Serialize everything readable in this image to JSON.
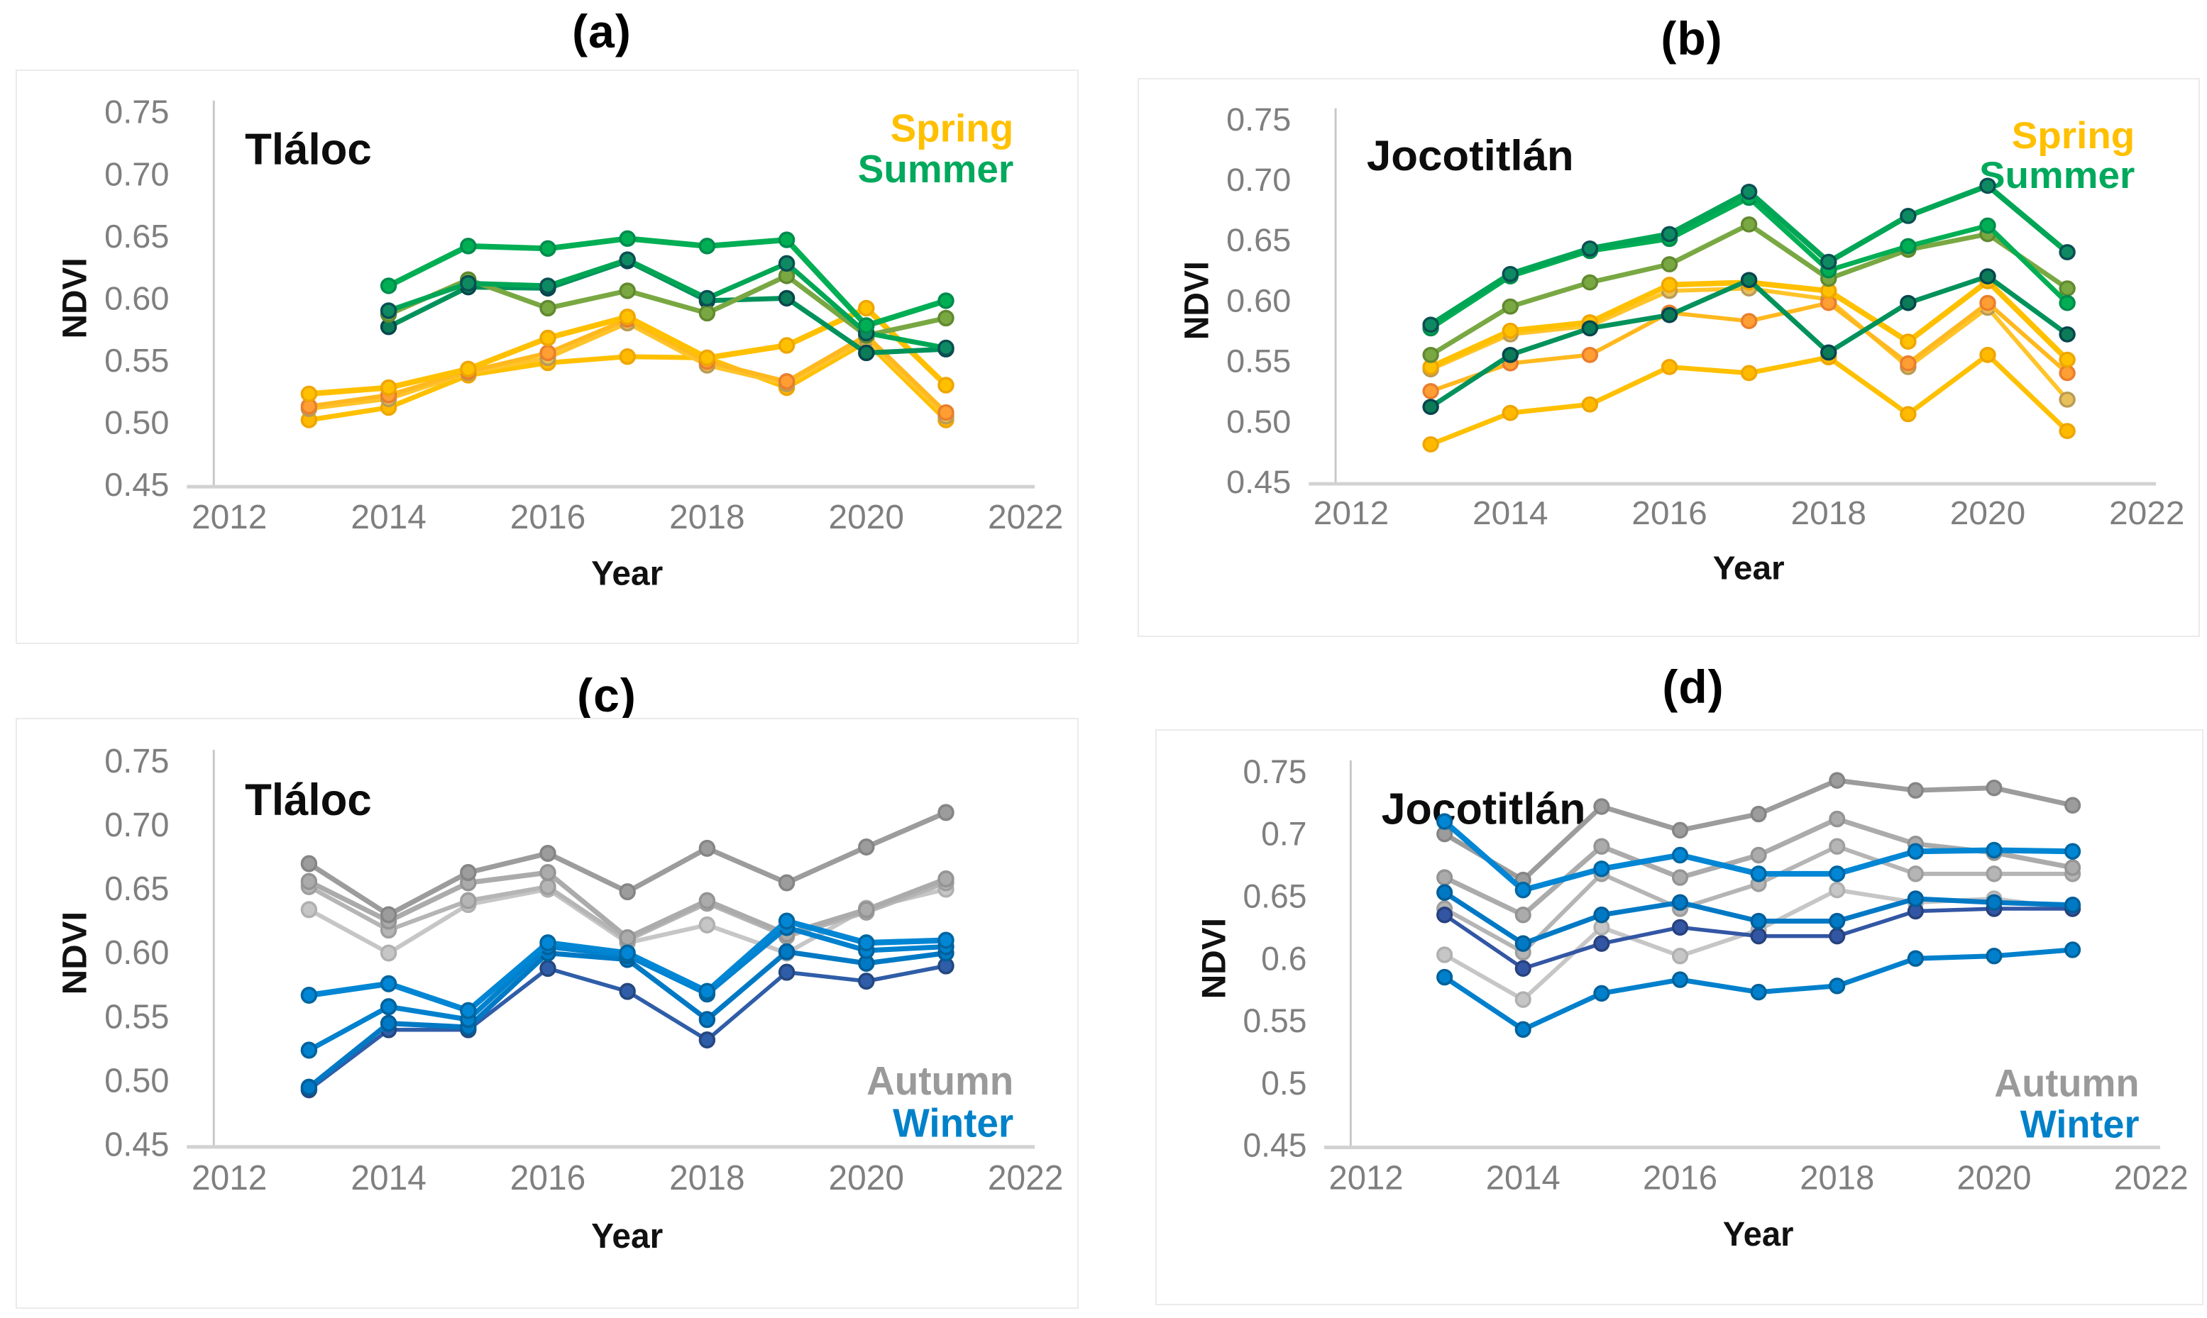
{
  "figure": {
    "description": "Four-panel line figure of mean NDVI per season and year for two volcanoes",
    "xlabel": "Year",
    "ylabel": "NDVI"
  },
  "chart_data": [
    {
      "id": "a",
      "label": "(a)",
      "title": "Tláloc",
      "type": "line",
      "xlabel": "Year",
      "ylabel": "NDVI",
      "xlim": [
        2012,
        2022
      ],
      "ylim": [
        0.45,
        0.75
      ],
      "x_ticks": [
        2012,
        2014,
        2016,
        2018,
        2020,
        2022
      ],
      "y_ticks": [
        "0.75",
        "0.70",
        "0.65",
        "0.60",
        "0.55",
        "0.50",
        "0.45"
      ],
      "legend": {
        "position": "top-right",
        "entries": [
          {
            "label": "Spring",
            "color": "#FFC000"
          },
          {
            "label": "Summer",
            "color": "#00A95C"
          }
        ]
      },
      "years": [
        2013,
        2014,
        2015,
        2016,
        2017,
        2018,
        2019,
        2020,
        2021
      ],
      "series": [
        {
          "name": "Spring 4",
          "season": "Spring",
          "color": "#FFC000",
          "marker_fill": "#FFBA00",
          "marker_stroke": "#EFA500",
          "width": 7,
          "values": [
            0.502,
            0.512,
            0.538,
            0.548,
            0.553,
            0.552,
            0.528,
            0.565,
            0.502
          ]
        },
        {
          "name": "Spring 3",
          "season": "Spring",
          "color": "#FFC42A",
          "marker_fill": "#E8C05A",
          "marker_stroke": "#B99B55",
          "width": 6,
          "values": [
            0.511,
            0.519,
            0.54,
            0.552,
            0.58,
            0.546,
            0.531,
            0.567,
            0.505
          ]
        },
        {
          "name": "Spring 2",
          "season": "Spring",
          "color": "#FFB81E",
          "marker_fill": "#FF9E33",
          "marker_stroke": "#E97E2E",
          "width": 6,
          "values": [
            0.513,
            0.522,
            0.541,
            0.556,
            0.583,
            0.549,
            0.533,
            0.57,
            0.508
          ]
        },
        {
          "name": "Spring 1",
          "season": "Spring",
          "color": "#FFC000",
          "marker_fill": "#FFC000",
          "marker_stroke": "#EFA500",
          "width": 8,
          "values": [
            0.523,
            0.528,
            0.543,
            0.568,
            0.585,
            0.552,
            0.562,
            0.592,
            0.53
          ]
        },
        {
          "name": "Summer 4",
          "season": "Summer",
          "color": "#00925B",
          "marker_fill": "#0B7B58",
          "marker_stroke": "#07454C",
          "width": 7,
          "values": [
            null,
            0.577,
            0.609,
            0.608,
            0.63,
            0.598,
            0.6,
            0.556,
            0.559
          ]
        },
        {
          "name": "Summer 3",
          "season": "Summer",
          "color": "#79A843",
          "marker_fill": "#79A843",
          "marker_stroke": "#61892F",
          "width": 7,
          "values": [
            null,
            0.587,
            0.615,
            0.592,
            0.606,
            0.588,
            0.618,
            0.57,
            0.584
          ]
        },
        {
          "name": "Summer 2",
          "season": "Summer",
          "color": "#00A655",
          "marker_fill": "#0E8A62",
          "marker_stroke": "#0A4F52",
          "width": 7,
          "values": [
            null,
            0.59,
            0.612,
            0.61,
            0.631,
            0.6,
            0.628,
            0.572,
            0.56
          ]
        },
        {
          "name": "Summer 1",
          "season": "Summer",
          "color": "#00AE54",
          "marker_fill": "#00AE54",
          "marker_stroke": "#008B4E",
          "width": 8,
          "values": [
            null,
            0.61,
            0.642,
            0.64,
            0.648,
            0.642,
            0.647,
            0.578,
            0.598
          ]
        }
      ]
    },
    {
      "id": "b",
      "label": "(b)",
      "title": "Jocotitlán",
      "type": "line",
      "xlabel": "Year",
      "ylabel": "NDVI",
      "xlim": [
        2012,
        2022
      ],
      "ylim": [
        0.45,
        0.75
      ],
      "x_ticks": [
        2012,
        2014,
        2016,
        2018,
        2020,
        2022
      ],
      "y_ticks": [
        "0.75",
        "0.70",
        "0.65",
        "0.60",
        "0.55",
        "0.50",
        "0.45"
      ],
      "legend": {
        "position": "top-right",
        "entries": [
          {
            "label": "Spring",
            "color": "#FFC000"
          },
          {
            "label": "Summer",
            "color": "#00A95C"
          }
        ]
      },
      "years": [
        2013,
        2014,
        2015,
        2016,
        2017,
        2018,
        2019,
        2020,
        2021
      ],
      "series": [
        {
          "name": "Spring 4",
          "season": "Spring",
          "color": "#FFC000",
          "marker_fill": "#FFBA00",
          "marker_stroke": "#EFA500",
          "width": 7,
          "values": [
            0.481,
            0.507,
            0.514,
            0.545,
            0.54,
            0.553,
            0.506,
            0.555,
            0.492
          ]
        },
        {
          "name": "Spring 3",
          "season": "Spring",
          "color": "#FFC42A",
          "marker_fill": "#E8C05A",
          "marker_stroke": "#B99B55",
          "width": 6,
          "values": [
            0.543,
            0.572,
            0.579,
            0.608,
            0.61,
            0.601,
            0.545,
            0.594,
            0.518
          ]
        },
        {
          "name": "Spring 2",
          "season": "Spring",
          "color": "#FFB81E",
          "marker_fill": "#FF9E33",
          "marker_stroke": "#E97E2E",
          "width": 6,
          "values": [
            0.525,
            0.548,
            0.555,
            0.59,
            0.583,
            0.598,
            0.548,
            0.598,
            0.54
          ]
        },
        {
          "name": "Spring 1",
          "season": "Spring",
          "color": "#FFC000",
          "marker_fill": "#FFC000",
          "marker_stroke": "#EFA500",
          "width": 8,
          "values": [
            0.545,
            0.575,
            0.582,
            0.613,
            0.615,
            0.608,
            0.566,
            0.616,
            0.551
          ]
        },
        {
          "name": "Summer 4",
          "season": "Summer",
          "color": "#00925B",
          "marker_fill": "#0B7B58",
          "marker_stroke": "#07454C",
          "width": 7,
          "values": [
            0.512,
            0.555,
            0.577,
            0.588,
            0.617,
            0.557,
            0.598,
            0.62,
            0.572
          ]
        },
        {
          "name": "Summer 3",
          "season": "Summer",
          "color": "#79A843",
          "marker_fill": "#79A843",
          "marker_stroke": "#61892F",
          "width": 7,
          "values": [
            0.555,
            0.595,
            0.615,
            0.63,
            0.663,
            0.618,
            0.642,
            0.655,
            0.61
          ]
        },
        {
          "name": "Summer 2",
          "season": "Summer",
          "color": "#00AE54",
          "marker_fill": "#00AE54",
          "marker_stroke": "#008B4E",
          "width": 7,
          "values": [
            0.577,
            0.62,
            0.641,
            0.651,
            0.685,
            0.625,
            0.645,
            0.662,
            0.598
          ]
        },
        {
          "name": "Summer 1",
          "season": "Summer",
          "color": "#00A655",
          "marker_fill": "#0E8A62",
          "marker_stroke": "#0A4F52",
          "width": 8,
          "values": [
            0.58,
            0.622,
            0.643,
            0.655,
            0.69,
            0.632,
            0.67,
            0.695,
            0.64
          ]
        }
      ]
    },
    {
      "id": "c",
      "label": "(c)",
      "title": "Tláloc",
      "type": "line",
      "xlabel": "Year",
      "ylabel": "NDVI",
      "xlim": [
        2012,
        2022
      ],
      "ylim": [
        0.45,
        0.75
      ],
      "x_ticks": [
        2012,
        2014,
        2016,
        2018,
        2020,
        2022
      ],
      "y_ticks": [
        "0.75",
        "0.70",
        "0.65",
        "0.60",
        "0.55",
        "0.50",
        "0.45"
      ],
      "legend": {
        "position": "bottom-right",
        "entries": [
          {
            "label": "Autumn",
            "color": "#9A9A9A"
          },
          {
            "label": "Winter",
            "color": "#0081C9"
          }
        ]
      },
      "years": [
        2013,
        2014,
        2015,
        2016,
        2017,
        2018,
        2019,
        2020,
        2021
      ],
      "series": [
        {
          "name": "Autumn 4",
          "season": "Autumn",
          "color": "#C6C6C6",
          "marker_fill": "#C6C6C6",
          "marker_stroke": "#B0B0B0",
          "width": 6,
          "values": [
            0.634,
            0.6,
            0.638,
            0.65,
            0.608,
            0.622,
            0.6,
            0.635,
            0.65
          ]
        },
        {
          "name": "Autumn 3",
          "season": "Autumn",
          "color": "#B5B5B5",
          "marker_fill": "#B5B5B5",
          "marker_stroke": "#9E9E9E",
          "width": 6,
          "values": [
            0.652,
            0.618,
            0.641,
            0.652,
            0.61,
            0.639,
            0.613,
            0.632,
            0.655
          ]
        },
        {
          "name": "Autumn 2",
          "season": "Autumn",
          "color": "#ABABAB",
          "marker_fill": "#ABABAB",
          "marker_stroke": "#949494",
          "width": 7,
          "values": [
            0.656,
            0.625,
            0.655,
            0.663,
            0.612,
            0.641,
            0.615,
            0.634,
            0.658
          ]
        },
        {
          "name": "Autumn 1",
          "season": "Autumn",
          "color": "#9C9C9C",
          "marker_fill": "#9C9C9C",
          "marker_stroke": "#858585",
          "width": 7,
          "values": [
            0.67,
            0.63,
            0.663,
            0.678,
            0.648,
            0.682,
            0.655,
            0.683,
            0.71
          ]
        },
        {
          "name": "Winter 4",
          "season": "Winter",
          "color": "#2F5DA8",
          "marker_fill": "#2F5DA8",
          "marker_stroke": "#24477F",
          "width": 5.5,
          "values": [
            0.493,
            0.54,
            0.54,
            0.588,
            0.57,
            0.532,
            0.585,
            0.578,
            0.59
          ]
        },
        {
          "name": "Winter 3",
          "season": "Winter",
          "color": "#0079C5",
          "marker_fill": "#0079C5",
          "marker_stroke": "#005E99",
          "width": 7,
          "values": [
            0.495,
            0.545,
            0.542,
            0.6,
            0.595,
            0.548,
            0.601,
            0.592,
            0.6
          ]
        },
        {
          "name": "Winter 2",
          "season": "Winter",
          "color": "#0081CE",
          "marker_fill": "#0081CE",
          "marker_stroke": "#00619B",
          "width": 7,
          "values": [
            0.524,
            0.558,
            0.548,
            0.605,
            0.598,
            0.568,
            0.62,
            0.602,
            0.605
          ]
        },
        {
          "name": "Winter 1",
          "season": "Winter",
          "color": "#0086D4",
          "marker_fill": "#0086D4",
          "marker_stroke": "#0065A0",
          "width": 8,
          "values": [
            0.567,
            0.576,
            0.555,
            0.608,
            0.6,
            0.57,
            0.625,
            0.608,
            0.61
          ]
        }
      ]
    },
    {
      "id": "d",
      "label": "(d)",
      "title": "Jocotitlán",
      "type": "line",
      "xlabel": "Year",
      "ylabel": "NDVI",
      "xlim": [
        2012,
        2022
      ],
      "ylim": [
        0.45,
        0.75
      ],
      "x_ticks": [
        2012,
        2014,
        2016,
        2018,
        2020,
        2022
      ],
      "y_ticks": [
        "0.75",
        "0.7",
        "0.65",
        "0.6",
        "0.55",
        "0.5",
        "0.45"
      ],
      "legend": {
        "position": "bottom-right",
        "entries": [
          {
            "label": "Autumn",
            "color": "#9A9A9A"
          },
          {
            "label": "Winter",
            "color": "#0081C9"
          }
        ]
      },
      "years": [
        2013,
        2014,
        2015,
        2016,
        2017,
        2018,
        2019,
        2020,
        2021
      ],
      "series": [
        {
          "name": "Autumn 4",
          "season": "Autumn",
          "color": "#C6C6C6",
          "marker_fill": "#C6C6C6",
          "marker_stroke": "#B0B0B0",
          "width": 6,
          "values": [
            0.603,
            0.567,
            0.625,
            0.602,
            0.623,
            0.655,
            0.645,
            0.648,
            0.64
          ]
        },
        {
          "name": "Autumn 3",
          "season": "Autumn",
          "color": "#B5B5B5",
          "marker_fill": "#B5B5B5",
          "marker_stroke": "#9E9E9E",
          "width": 6,
          "values": [
            0.64,
            0.605,
            0.668,
            0.64,
            0.66,
            0.69,
            0.668,
            0.668,
            0.668
          ]
        },
        {
          "name": "Autumn 2",
          "season": "Autumn",
          "color": "#ABABAB",
          "marker_fill": "#ABABAB",
          "marker_stroke": "#949494",
          "width": 7,
          "values": [
            0.665,
            0.635,
            0.69,
            0.665,
            0.683,
            0.712,
            0.692,
            0.685,
            0.673
          ]
        },
        {
          "name": "Autumn 1",
          "season": "Autumn",
          "color": "#9C9C9C",
          "marker_fill": "#9C9C9C",
          "marker_stroke": "#858585",
          "width": 7,
          "values": [
            0.7,
            0.663,
            0.722,
            0.703,
            0.716,
            0.743,
            0.735,
            0.737,
            0.723
          ]
        },
        {
          "name": "Winter 4",
          "season": "Winter",
          "color": "#0080CC",
          "marker_fill": "#0080CC",
          "marker_stroke": "#00619B",
          "width": 7,
          "values": [
            0.585,
            0.543,
            0.572,
            0.583,
            0.573,
            0.578,
            0.6,
            0.602,
            0.607
          ]
        },
        {
          "name": "Winter 3",
          "season": "Winter",
          "color": "#3356A4",
          "marker_fill": "#3356A4",
          "marker_stroke": "#27417D",
          "width": 5.5,
          "values": [
            0.635,
            0.592,
            0.612,
            0.625,
            0.618,
            0.618,
            0.638,
            0.64,
            0.64
          ]
        },
        {
          "name": "Winter 2",
          "season": "Winter",
          "color": "#0079C5",
          "marker_fill": "#0079C5",
          "marker_stroke": "#005E99",
          "width": 7,
          "values": [
            0.653,
            0.612,
            0.635,
            0.645,
            0.63,
            0.63,
            0.648,
            0.645,
            0.643
          ]
        },
        {
          "name": "Winter 1",
          "season": "Winter",
          "color": "#0086D4",
          "marker_fill": "#0086D4",
          "marker_stroke": "#0065A0",
          "width": 8,
          "values": [
            0.71,
            0.655,
            0.672,
            0.683,
            0.668,
            0.668,
            0.686,
            0.687,
            0.686
          ]
        }
      ]
    }
  ]
}
